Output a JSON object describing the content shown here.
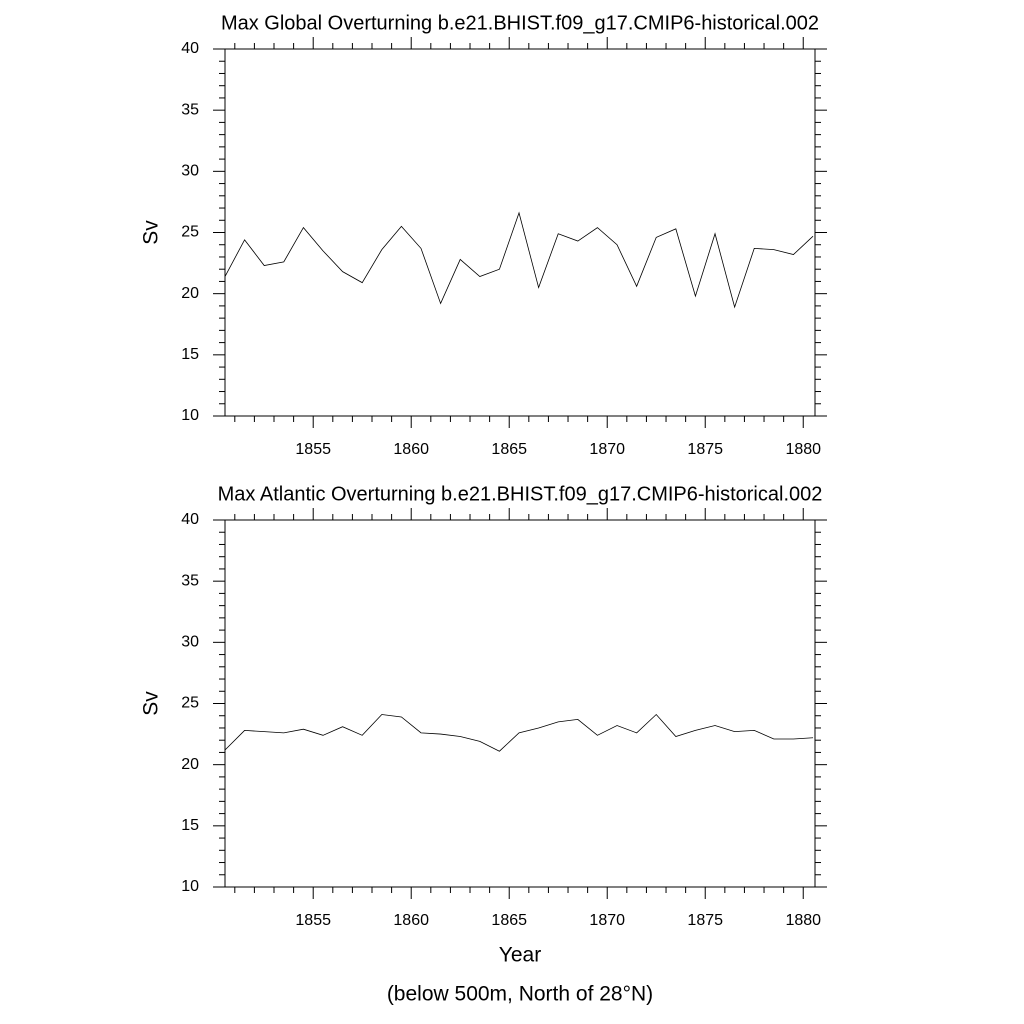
{
  "chart_data": [
    {
      "type": "line",
      "title": "Max Global Overturning b.e21.BHIST.f09_g17.CMIP6-historical.002",
      "ylabel": "Sv",
      "x": [
        1850.5,
        1851.5,
        1852.5,
        1853.5,
        1854.5,
        1855.5,
        1856.5,
        1857.5,
        1858.5,
        1859.5,
        1860.5,
        1861.5,
        1862.5,
        1863.5,
        1864.5,
        1865.5,
        1866.5,
        1867.5,
        1868.5,
        1869.5,
        1870.5,
        1871.5,
        1872.5,
        1873.5,
        1874.5,
        1875.5,
        1876.5,
        1877.5,
        1878.5,
        1879.5,
        1880.5
      ],
      "series": [
        {
          "color": "#000000",
          "values": [
            21.4,
            24.4,
            22.3,
            22.6,
            25.4,
            23.5,
            21.8,
            20.9,
            23.6,
            25.5,
            23.7,
            19.2,
            22.8,
            21.4,
            22.0,
            26.6,
            20.5,
            24.9,
            24.3,
            25.4,
            24.0,
            20.6,
            24.6,
            25.3,
            19.8,
            24.9,
            18.9,
            23.7,
            23.6,
            23.2,
            24.7
          ]
        }
      ],
      "xlim": [
        1850.5,
        1880.6
      ],
      "xticks": [
        1855,
        1860,
        1865,
        1870,
        1875,
        1880
      ],
      "ylim": [
        10,
        40
      ],
      "yticks": [
        10,
        15,
        20,
        25,
        30,
        35,
        40
      ]
    },
    {
      "type": "line",
      "title": "Max Atlantic Overturning b.e21.BHIST.f09_g17.CMIP6-historical.002",
      "ylabel": "Sv",
      "xlabel": "Year",
      "note": "(below 500m, North of 28°N)",
      "x": [
        1850.5,
        1851.5,
        1852.5,
        1853.5,
        1854.5,
        1855.5,
        1856.5,
        1857.5,
        1858.5,
        1859.5,
        1860.5,
        1861.5,
        1862.5,
        1863.5,
        1864.5,
        1865.5,
        1866.5,
        1867.5,
        1868.5,
        1869.5,
        1870.5,
        1871.5,
        1872.5,
        1873.5,
        1874.5,
        1875.5,
        1876.5,
        1877.5,
        1878.5,
        1879.5,
        1880.5
      ],
      "series": [
        {
          "color": "#000000",
          "values": [
            21.2,
            22.8,
            22.7,
            22.6,
            22.9,
            22.4,
            23.1,
            22.4,
            24.1,
            23.9,
            22.6,
            22.5,
            22.3,
            21.9,
            21.1,
            22.6,
            23.0,
            23.5,
            23.7,
            22.4,
            23.2,
            22.6,
            24.1,
            22.3,
            22.8,
            23.2,
            22.7,
            22.8,
            22.1,
            22.1,
            22.2
          ]
        }
      ],
      "xlim": [
        1850.5,
        1880.6
      ],
      "xticks": [
        1855,
        1860,
        1865,
        1870,
        1875,
        1880
      ],
      "ylim": [
        10,
        40
      ],
      "yticks": [
        10,
        15,
        20,
        25,
        30,
        35,
        40
      ]
    }
  ]
}
